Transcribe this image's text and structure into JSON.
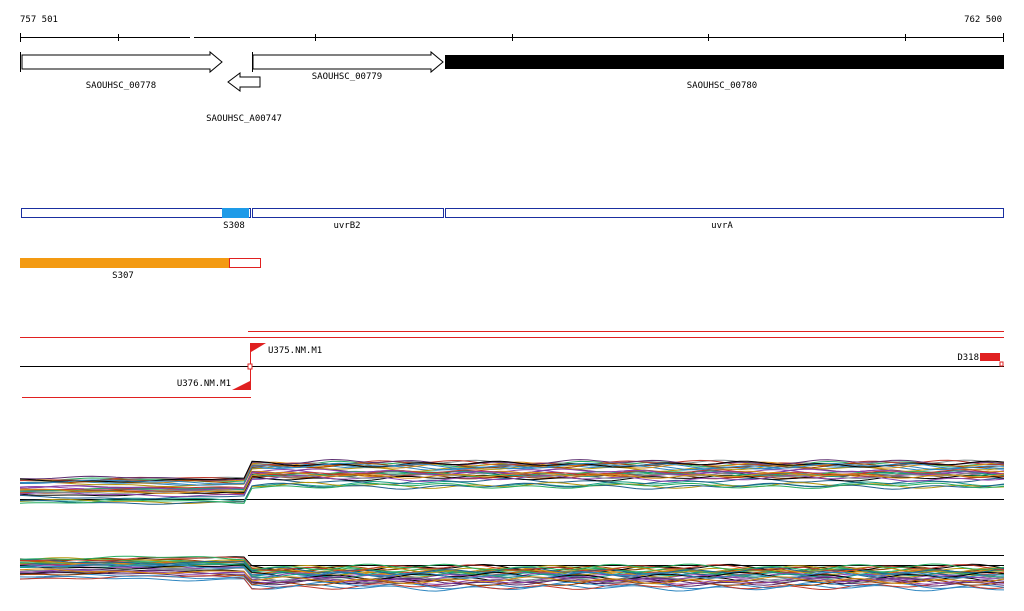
{
  "ruler": {
    "start": "757 501",
    "end": "762 500"
  },
  "genes": [
    "SAOUHSC_00778",
    "SAOUHSC_A00747",
    "SAOUHSC_00779",
    "SAOUHSC_00780"
  ],
  "segments": [
    "S308",
    "uvrB2",
    "uvrA",
    "S307"
  ],
  "features": [
    "U375.NM.M1",
    "U376.NM.M1",
    "D318"
  ]
}
